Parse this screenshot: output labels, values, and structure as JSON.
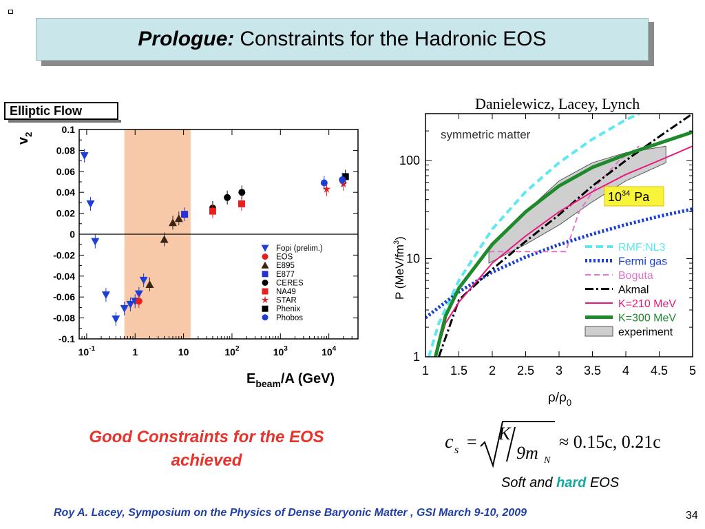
{
  "slide": {
    "title_lead": "Prologue:",
    "title_rest": "Constraints for the Hadronic EOS",
    "credit": "Danielewicz, Lacey, Lynch",
    "conclusion_line1": "Good Constraints for the EOS",
    "conclusion_line2": "achieved",
    "soft_pre": "Soft and ",
    "soft_hard": "hard",
    "soft_post": " EOS",
    "footer": "Roy A. Lacey,  Symposium on the  Physics of Dense Baryonic Matter ,  GSI  March 9-10,  2009",
    "slide_number": "34",
    "equation": {
      "lhs": "c",
      "lhs_sub": "s",
      "eq": "=",
      "num": "K",
      "den": "9m",
      "den_sub": "N",
      "rhs": "≈ 0.15c, 0.21c"
    },
    "colors": {
      "title_bg": "#c9e6ea",
      "conclusion": "#e8322a",
      "footer": "#1f3fa8",
      "hard": "#1aa5a5"
    }
  },
  "chart_data": [
    {
      "type": "scatter",
      "title": "Elliptic Flow",
      "ylabel": "v",
      "ylabel_sub": "2",
      "xlabel": "E",
      "xlabel_sub": "beam",
      "xlabel_post": "/A (GeV)",
      "xscale": "log",
      "xlim": [
        0.07,
        40000
      ],
      "ylim": [
        -0.1,
        0.1
      ],
      "x_ticks": [
        {
          "v": 0.1,
          "b": "10",
          "e": "-1"
        },
        {
          "v": 1,
          "b": "1",
          "e": ""
        },
        {
          "v": 10,
          "b": "10",
          "e": ""
        },
        {
          "v": 100,
          "b": "10",
          "e": "2"
        },
        {
          "v": 1000,
          "b": "10",
          "e": "3"
        },
        {
          "v": 10000,
          "b": "10",
          "e": "4"
        }
      ],
      "y_ticks": [
        "0.1",
        "0.08",
        "0.06",
        "0.04",
        "0.02",
        "0",
        "-0.02",
        "-0.04",
        "-0.06",
        "-0.08",
        "-0.1"
      ],
      "y_tick_values": [
        0.1,
        0.08,
        0.06,
        0.04,
        0.02,
        0,
        -0.02,
        -0.04,
        -0.06,
        -0.08,
        -0.1
      ],
      "shaded_band": [
        0.6,
        14
      ],
      "legend_position": "lower-right",
      "series": [
        {
          "name": "Fopi (prelim.)",
          "marker": "tri-down",
          "color": "#1d3fd6",
          "points": [
            [
              0.09,
              0.075
            ],
            [
              0.12,
              0.029
            ],
            [
              0.15,
              -0.007
            ],
            [
              0.25,
              -0.058
            ],
            [
              0.4,
              -0.081
            ],
            [
              0.6,
              -0.071
            ],
            [
              0.8,
              -0.067
            ],
            [
              1.0,
              -0.064
            ],
            [
              1.2,
              -0.057
            ],
            [
              1.5,
              -0.044
            ]
          ]
        },
        {
          "name": "EOS",
          "marker": "circle",
          "color": "#e8201c",
          "points": [
            [
              1.2,
              -0.064
            ]
          ]
        },
        {
          "name": "E895",
          "marker": "tri-up",
          "color": "#3a2418",
          "points": [
            [
              2.0,
              -0.048
            ],
            [
              4.0,
              -0.005
            ],
            [
              6.0,
              0.011
            ],
            [
              8.0,
              0.015
            ]
          ]
        },
        {
          "name": "E877",
          "marker": "square",
          "color": "#2430d8",
          "points": [
            [
              10.5,
              0.019
            ]
          ]
        },
        {
          "name": "CERES",
          "marker": "circle",
          "color": "#000000",
          "points": [
            [
              40,
              0.025
            ],
            [
              80,
              0.035
            ],
            [
              160,
              0.04
            ]
          ]
        },
        {
          "name": "NA49",
          "marker": "square",
          "color": "#e8201c",
          "points": [
            [
              40,
              0.022
            ],
            [
              158,
              0.029
            ]
          ]
        },
        {
          "name": "STAR",
          "marker": "star",
          "color": "#e8201c",
          "points": [
            [
              9000,
              0.043
            ],
            [
              20000,
              0.048
            ]
          ]
        },
        {
          "name": "Phenix",
          "marker": "square",
          "color": "#000000",
          "points": [
            [
              22000,
              0.055
            ]
          ]
        },
        {
          "name": "Phobos",
          "marker": "circle",
          "color": "#1d3fd6",
          "points": [
            [
              8000,
              0.049
            ],
            [
              19000,
              0.052
            ]
          ]
        }
      ]
    },
    {
      "type": "line",
      "annotation": "symmetric matter",
      "pressure_label_base": "10",
      "pressure_label_exp": "34",
      "pressure_label_unit": "Pa",
      "ylabel": "P (MeV/fm",
      "ylabel_sup": "3",
      "ylabel_post": ")",
      "xlabel": "ρ/ρ",
      "xlabel_sub": "0",
      "xlim": [
        1,
        5
      ],
      "ylim": [
        1,
        300
      ],
      "yscale": "log",
      "x_ticks": [
        "1",
        "1.5",
        "2",
        "2.5",
        "3",
        "3.5",
        "4",
        "4.5",
        "5"
      ],
      "x_tick_values": [
        1,
        1.5,
        2,
        2.5,
        3,
        3.5,
        4,
        4.5,
        5
      ],
      "y_ticks": [
        "1",
        "10",
        "100"
      ],
      "y_tick_values": [
        1,
        10,
        100
      ],
      "legend_position": "lower-right",
      "series": [
        {
          "name": "RMF:NL3",
          "color": "#5ee8f2",
          "dash": "10,6",
          "width": 4,
          "x": [
            1.05,
            1.2,
            1.5,
            2,
            2.5,
            3,
            3.5,
            4,
            4.2
          ],
          "y": [
            1,
            2.2,
            6,
            20,
            48,
            95,
            165,
            260,
            300
          ]
        },
        {
          "name": "Fermi gas",
          "color": "#1a3fd6",
          "dash": "3,3",
          "width": 5,
          "x": [
            1,
            1.5,
            2,
            2.5,
            3,
            3.5,
            4,
            4.5,
            5
          ],
          "y": [
            2.5,
            4.6,
            7.3,
            10.4,
            13.9,
            17.8,
            22.2,
            27,
            32
          ]
        },
        {
          "name": "Boguta",
          "color": "#e273cc",
          "dash": "8,5",
          "width": 2,
          "x": [
            1.95,
            3.1,
            3.3,
            3.6,
            3.9,
            4.2
          ],
          "y": [
            11.8,
            11.8,
            30,
            60,
            100,
            140
          ]
        },
        {
          "name": "Akmal",
          "color": "#000000",
          "dash": "12,4,3,4",
          "width": 3,
          "x": [
            1.2,
            1.5,
            2,
            2.5,
            3,
            3.5,
            4,
            4.5,
            5
          ],
          "y": [
            1,
            3.8,
            7.8,
            15,
            28,
            55,
            100,
            175,
            300
          ]
        },
        {
          "name": "K=210 MeV",
          "color": "#e6187e",
          "dash": "",
          "width": 2,
          "x": [
            1.15,
            1.3,
            1.5,
            2,
            2.5,
            3,
            3.5,
            4,
            4.5,
            5
          ],
          "y": [
            1,
            2.2,
            3.6,
            9,
            17,
            30,
            48,
            72,
            100,
            140
          ]
        },
        {
          "name": "K=300 MeV",
          "color": "#1e8a2c",
          "dash": "",
          "width": 5,
          "x": [
            1.15,
            1.3,
            1.5,
            2,
            2.5,
            3,
            3.5,
            4,
            4.5,
            5
          ],
          "y": [
            1,
            2.6,
            5,
            14,
            30,
            55,
            85,
            115,
            150,
            195
          ]
        },
        {
          "name": "experiment",
          "fill": "#cfcfcf",
          "stroke": "#555555",
          "band_x": [
            1.95,
            2.5,
            3,
            3.5,
            4,
            4.6
          ],
          "band_lo": [
            9,
            14,
            22,
            38,
            62,
            95
          ],
          "band_hi": [
            13,
            30,
            62,
            95,
            120,
            140
          ]
        }
      ]
    }
  ]
}
